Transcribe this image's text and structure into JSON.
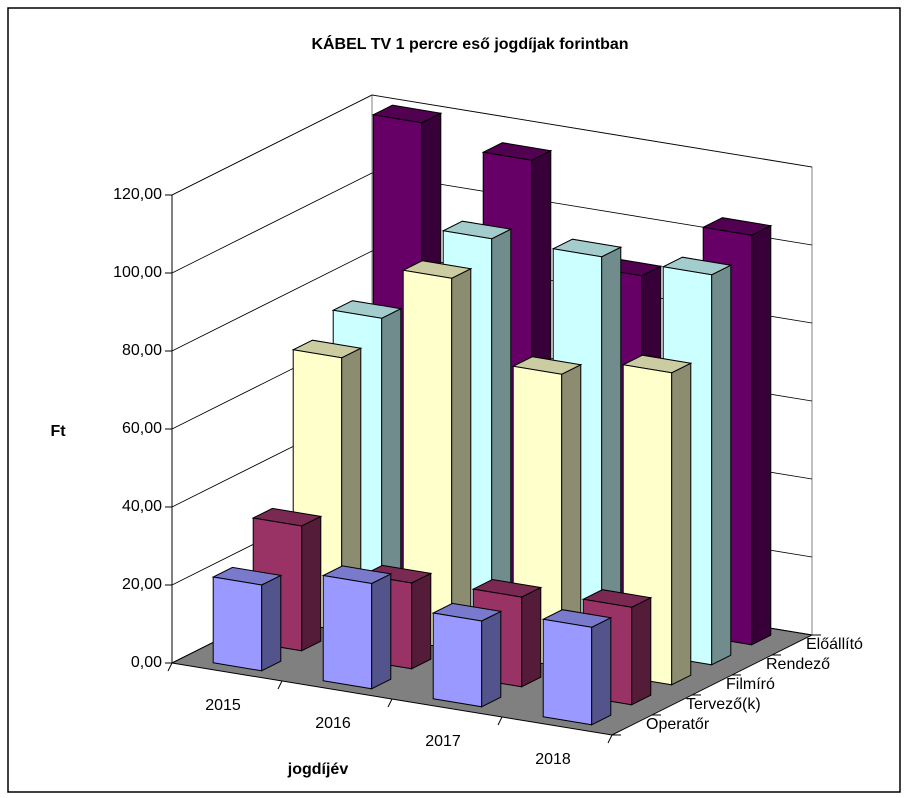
{
  "chart_data": {
    "type": "bar3d",
    "title": "KÁBEL TV   1 percre eső jogdíjak forintban",
    "x_label": "jogdíjév",
    "y_label": "Ft",
    "categories": [
      "2015",
      "2016",
      "2017",
      "2018"
    ],
    "series": [
      {
        "name": "Operatőr",
        "color": "#9999ff",
        "values": [
          22,
          27,
          22,
          25
        ]
      },
      {
        "name": "Tervező(k)",
        "color": "#993366",
        "values": [
          32,
          22,
          23,
          25
        ]
      },
      {
        "name": "Filmíró",
        "color": "#ffffcc",
        "values": [
          70,
          95,
          75,
          80
        ]
      },
      {
        "name": "Rendező",
        "color": "#ccffff",
        "values": [
          75,
          100,
          100,
          100
        ]
      },
      {
        "name": "Előállító",
        "color": "#660066",
        "values": [
          120,
          115,
          90,
          105
        ]
      }
    ],
    "ylim": [
      0,
      120
    ],
    "yticks": [
      {
        "value": 0,
        "label": "0,00"
      },
      {
        "value": 20,
        "label": "20,00"
      },
      {
        "value": 40,
        "label": "40,00"
      },
      {
        "value": 60,
        "label": "60,00"
      },
      {
        "value": 80,
        "label": "80,00"
      },
      {
        "value": 100,
        "label": "100,00"
      },
      {
        "value": 120,
        "label": "120,00"
      }
    ],
    "grid": true
  }
}
